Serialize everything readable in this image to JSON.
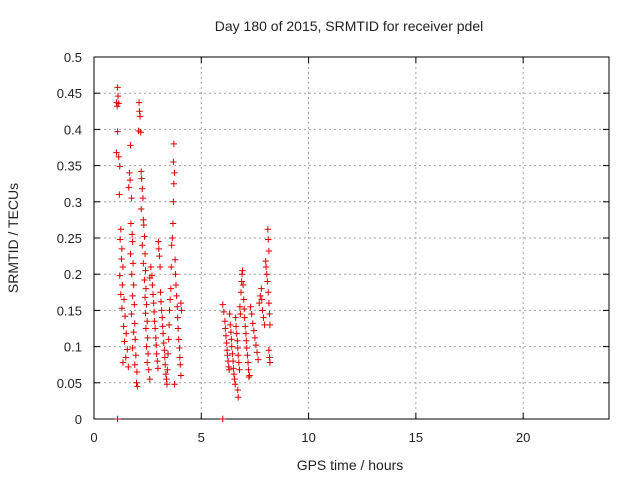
{
  "chart_data": {
    "type": "scatter",
    "title": "Day 180 of 2015, SRMTID for receiver pdel",
    "xlabel": "GPS time / hours",
    "ylabel": "SRMTID / TECUs",
    "xlim": [
      0,
      24
    ],
    "ylim": [
      0,
      0.5
    ],
    "xticks": [
      0,
      5,
      10,
      15,
      20
    ],
    "xtick_labels": [
      "0",
      "5",
      "10",
      "15",
      "20"
    ],
    "yticks": [
      0,
      0.05,
      0.1,
      0.15,
      0.2,
      0.25,
      0.3,
      0.35,
      0.4,
      0.45,
      0.5
    ],
    "ytick_labels": [
      "0",
      "0.05",
      "0.1",
      "0.15",
      "0.2",
      "0.25",
      "0.3",
      "0.35",
      "0.4",
      "0.45",
      "0.5"
    ],
    "grid": true,
    "marker": "plus",
    "series": [
      {
        "color": "#dd0000",
        "points": [
          [
            1.05,
            0.437
          ],
          [
            1.1,
            0.458
          ],
          [
            1.12,
            0.446
          ],
          [
            1.08,
            0.432
          ],
          [
            1.15,
            0.436
          ],
          [
            1.1,
            0.397
          ],
          [
            1.05,
            0.368
          ],
          [
            1.15,
            0.362
          ],
          [
            1.2,
            0.349
          ],
          [
            1.18,
            0.31
          ],
          [
            1.25,
            0.262
          ],
          [
            1.22,
            0.248
          ],
          [
            1.3,
            0.235
          ],
          [
            1.28,
            0.221
          ],
          [
            1.35,
            0.21
          ],
          [
            1.2,
            0.198
          ],
          [
            1.32,
            0.185
          ],
          [
            1.25,
            0.172
          ],
          [
            1.4,
            0.165
          ],
          [
            1.3,
            0.153
          ],
          [
            1.45,
            0.142
          ],
          [
            1.38,
            0.128
          ],
          [
            1.5,
            0.118
          ],
          [
            1.42,
            0.107
          ],
          [
            1.55,
            0.096
          ],
          [
            1.48,
            0.085
          ],
          [
            1.6,
            0.072
          ],
          [
            1.35,
            0.078
          ],
          [
            1.62,
            0.32
          ],
          [
            1.65,
            0.34
          ],
          [
            1.7,
            0.378
          ],
          [
            1.68,
            0.33
          ],
          [
            1.75,
            0.305
          ],
          [
            1.72,
            0.27
          ],
          [
            1.78,
            0.255
          ],
          [
            1.8,
            0.245
          ],
          [
            1.7,
            0.228
          ],
          [
            1.82,
            0.215
          ],
          [
            1.76,
            0.2
          ],
          [
            1.85,
            0.185
          ],
          [
            1.8,
            0.17
          ],
          [
            1.88,
            0.158
          ],
          [
            1.75,
            0.145
          ],
          [
            1.9,
            0.132
          ],
          [
            1.85,
            0.12
          ],
          [
            1.92,
            0.11
          ],
          [
            1.8,
            0.098
          ],
          [
            1.95,
            0.088
          ],
          [
            1.9,
            0.075
          ],
          [
            2.0,
            0.065
          ],
          [
            1.98,
            0.05
          ],
          [
            2.02,
            0.045
          ],
          [
            2.1,
            0.437
          ],
          [
            2.12,
            0.425
          ],
          [
            2.15,
            0.418
          ],
          [
            2.08,
            0.398
          ],
          [
            2.18,
            0.396
          ],
          [
            2.2,
            0.342
          ],
          [
            2.22,
            0.332
          ],
          [
            2.25,
            0.318
          ],
          [
            2.28,
            0.305
          ],
          [
            2.2,
            0.29
          ],
          [
            2.3,
            0.275
          ],
          [
            2.32,
            0.268
          ],
          [
            2.35,
            0.252
          ],
          [
            2.25,
            0.24
          ],
          [
            2.38,
            0.228
          ],
          [
            2.3,
            0.215
          ],
          [
            2.4,
            0.205
          ],
          [
            2.35,
            0.192
          ],
          [
            2.42,
            0.18
          ],
          [
            2.38,
            0.168
          ],
          [
            2.45,
            0.158
          ],
          [
            2.4,
            0.146
          ],
          [
            2.48,
            0.135
          ],
          [
            2.42,
            0.125
          ],
          [
            2.5,
            0.112
          ],
          [
            2.45,
            0.1
          ],
          [
            2.52,
            0.09
          ],
          [
            2.48,
            0.078
          ],
          [
            2.55,
            0.068
          ],
          [
            2.6,
            0.055
          ],
          [
            2.6,
            0.195
          ],
          [
            2.65,
            0.21
          ],
          [
            2.7,
            0.198
          ],
          [
            2.72,
            0.185
          ],
          [
            2.75,
            0.172
          ],
          [
            2.78,
            0.16
          ],
          [
            2.8,
            0.148
          ],
          [
            2.82,
            0.135
          ],
          [
            2.85,
            0.125
          ],
          [
            2.88,
            0.112
          ],
          [
            2.9,
            0.102
          ],
          [
            2.92,
            0.09
          ],
          [
            2.95,
            0.08
          ],
          [
            2.98,
            0.07
          ],
          [
            3.0,
            0.245
          ],
          [
            3.02,
            0.235
          ],
          [
            3.05,
            0.225
          ],
          [
            3.08,
            0.21
          ],
          [
            3.1,
            0.175
          ],
          [
            3.12,
            0.162
          ],
          [
            3.15,
            0.15
          ],
          [
            3.18,
            0.14
          ],
          [
            3.2,
            0.128
          ],
          [
            3.22,
            0.118
          ],
          [
            3.25,
            0.105
          ],
          [
            3.28,
            0.095
          ],
          [
            3.3,
            0.085
          ],
          [
            3.32,
            0.075
          ],
          [
            3.35,
            0.062
          ],
          [
            3.38,
            0.055
          ],
          [
            3.4,
            0.048
          ],
          [
            3.42,
            0.068
          ],
          [
            3.45,
            0.09
          ],
          [
            3.48,
            0.11
          ],
          [
            3.5,
            0.13
          ],
          [
            3.52,
            0.15
          ],
          [
            3.55,
            0.165
          ],
          [
            3.58,
            0.18
          ],
          [
            3.6,
            0.21
          ],
          [
            3.62,
            0.24
          ],
          [
            3.65,
            0.25
          ],
          [
            3.68,
            0.27
          ],
          [
            3.7,
            0.3
          ],
          [
            3.72,
            0.325
          ],
          [
            3.75,
            0.34
          ],
          [
            3.7,
            0.355
          ],
          [
            3.72,
            0.38
          ],
          [
            3.78,
            0.22
          ],
          [
            3.8,
            0.2
          ],
          [
            3.82,
            0.185
          ],
          [
            3.85,
            0.17
          ],
          [
            3.88,
            0.155
          ],
          [
            3.9,
            0.14
          ],
          [
            3.92,
            0.125
          ],
          [
            3.95,
            0.11
          ],
          [
            3.98,
            0.098
          ],
          [
            4.0,
            0.085
          ],
          [
            4.02,
            0.075
          ],
          [
            4.05,
            0.06
          ],
          [
            3.75,
            0.048
          ],
          [
            4.05,
            0.16
          ],
          [
            4.08,
            0.15
          ],
          [
            6.0,
            0.158
          ],
          [
            6.05,
            0.148
          ],
          [
            6.1,
            0.135
          ],
          [
            6.12,
            0.125
          ],
          [
            6.15,
            0.115
          ],
          [
            6.18,
            0.105
          ],
          [
            6.2,
            0.095
          ],
          [
            6.22,
            0.088
          ],
          [
            6.25,
            0.08
          ],
          [
            6.28,
            0.072
          ],
          [
            6.3,
            0.068
          ],
          [
            6.32,
            0.145
          ],
          [
            6.35,
            0.13
          ],
          [
            6.38,
            0.12
          ],
          [
            6.4,
            0.11
          ],
          [
            6.42,
            0.1
          ],
          [
            6.45,
            0.09
          ],
          [
            6.48,
            0.08
          ],
          [
            6.5,
            0.07
          ],
          [
            6.52,
            0.062
          ],
          [
            6.55,
            0.055
          ],
          [
            6.58,
            0.048
          ],
          [
            6.6,
            0.14
          ],
          [
            6.62,
            0.128
          ],
          [
            6.65,
            0.118
          ],
          [
            6.68,
            0.108
          ],
          [
            6.7,
            0.098
          ],
          [
            6.72,
            0.088
          ],
          [
            6.75,
            0.078
          ],
          [
            6.7,
            0.04
          ],
          [
            6.72,
            0.03
          ],
          [
            6.78,
            0.068
          ],
          [
            6.8,
            0.155
          ],
          [
            6.82,
            0.145
          ],
          [
            6.85,
            0.175
          ],
          [
            6.88,
            0.19
          ],
          [
            6.9,
            0.2
          ],
          [
            6.92,
            0.205
          ],
          [
            6.95,
            0.185
          ],
          [
            6.98,
            0.165
          ],
          [
            7.0,
            0.152
          ],
          [
            7.02,
            0.14
          ],
          [
            7.05,
            0.128
          ],
          [
            7.08,
            0.118
          ],
          [
            7.1,
            0.108
          ],
          [
            7.12,
            0.098
          ],
          [
            7.15,
            0.088
          ],
          [
            7.18,
            0.078
          ],
          [
            7.2,
            0.068
          ],
          [
            7.22,
            0.058
          ],
          [
            7.25,
            0.06
          ],
          [
            7.3,
            0.155
          ],
          [
            7.35,
            0.145
          ],
          [
            7.4,
            0.132
          ],
          [
            7.45,
            0.122
          ],
          [
            7.5,
            0.112
          ],
          [
            7.55,
            0.102
          ],
          [
            7.6,
            0.092
          ],
          [
            7.65,
            0.082
          ],
          [
            7.7,
            0.16
          ],
          [
            7.75,
            0.17
          ],
          [
            7.8,
            0.18
          ],
          [
            7.82,
            0.165
          ],
          [
            7.85,
            0.15
          ],
          [
            7.9,
            0.14
          ],
          [
            7.95,
            0.13
          ],
          [
            8.0,
            0.218
          ],
          [
            8.02,
            0.21
          ],
          [
            8.05,
            0.2
          ],
          [
            8.08,
            0.19
          ],
          [
            8.1,
            0.262
          ],
          [
            8.12,
            0.248
          ],
          [
            8.15,
            0.232
          ],
          [
            8.12,
            0.175
          ],
          [
            8.15,
            0.16
          ],
          [
            8.18,
            0.145
          ],
          [
            8.2,
            0.13
          ],
          [
            8.15,
            0.095
          ],
          [
            8.18,
            0.085
          ],
          [
            8.2,
            0.078
          ]
        ]
      },
      {
        "color": "#dd0000",
        "points": [
          [
            1.1,
            0.0
          ],
          [
            6.0,
            0.0
          ]
        ]
      }
    ]
  }
}
